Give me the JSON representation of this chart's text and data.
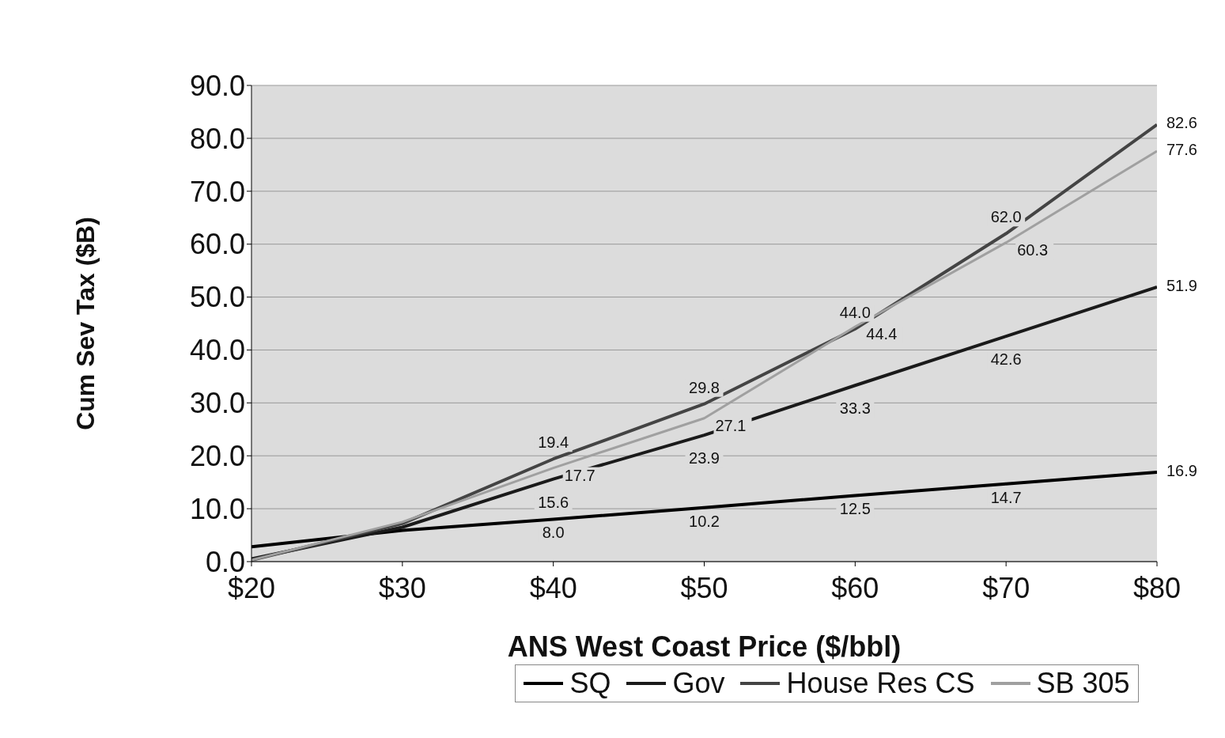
{
  "chart_data": {
    "type": "line",
    "xlabel": "ANS West Coast Price ($/bbl)",
    "ylabel": "Cum Sev Tax ($B)",
    "x": [
      20,
      30,
      40,
      50,
      60,
      70,
      80
    ],
    "series": [
      {
        "name": "SQ",
        "color": "#000000",
        "values": [
          2.8,
          5.9,
          8.0,
          10.2,
          12.5,
          14.7,
          16.9
        ],
        "value_labels": [
          null,
          null,
          "8.0",
          "10.2",
          "12.5",
          "14.7",
          "16.9"
        ]
      },
      {
        "name": "Gov",
        "color": "#1a1a1a",
        "values": [
          0.5,
          6.5,
          15.6,
          23.9,
          33.3,
          42.6,
          51.9
        ],
        "value_labels": [
          null,
          null,
          "15.6",
          "23.9",
          "33.3",
          "42.6",
          "51.9"
        ]
      },
      {
        "name": "House Res CS",
        "color": "#444444",
        "values": [
          0.3,
          7.2,
          19.4,
          29.8,
          44.0,
          62.0,
          82.6
        ],
        "value_labels": [
          null,
          null,
          "19.4",
          "29.8",
          "44.0",
          "62.0",
          "82.6"
        ]
      },
      {
        "name": "SB 305",
        "color": "#a0a0a0",
        "values": [
          0.3,
          7.5,
          17.7,
          27.1,
          44.4,
          60.3,
          77.6
        ],
        "value_labels": [
          null,
          null,
          "17.7",
          "27.1",
          "44.4",
          "60.3",
          "77.6"
        ]
      }
    ],
    "xlim": [
      20,
      80
    ],
    "xticks": [
      {
        "value": 20,
        "label": "$20"
      },
      {
        "value": 30,
        "label": "$30"
      },
      {
        "value": 40,
        "label": "$40"
      },
      {
        "value": 50,
        "label": "$50"
      },
      {
        "value": 60,
        "label": "$60"
      },
      {
        "value": 70,
        "label": "$70"
      },
      {
        "value": 80,
        "label": "$80"
      }
    ],
    "ylim": [
      0,
      90
    ],
    "yticks": [
      {
        "value": 0,
        "label": "0.0"
      },
      {
        "value": 10,
        "label": "10.0"
      },
      {
        "value": 20,
        "label": "20.0"
      },
      {
        "value": 30,
        "label": "30.0"
      },
      {
        "value": 40,
        "label": "40.0"
      },
      {
        "value": 50,
        "label": "50.0"
      },
      {
        "value": 60,
        "label": "60.0"
      },
      {
        "value": 70,
        "label": "70.0"
      },
      {
        "value": 80,
        "label": "80.0"
      },
      {
        "value": 90,
        "label": "90.0"
      }
    ],
    "grid": "y",
    "legend": "bottom",
    "marker": "none",
    "line_style": "solid"
  }
}
